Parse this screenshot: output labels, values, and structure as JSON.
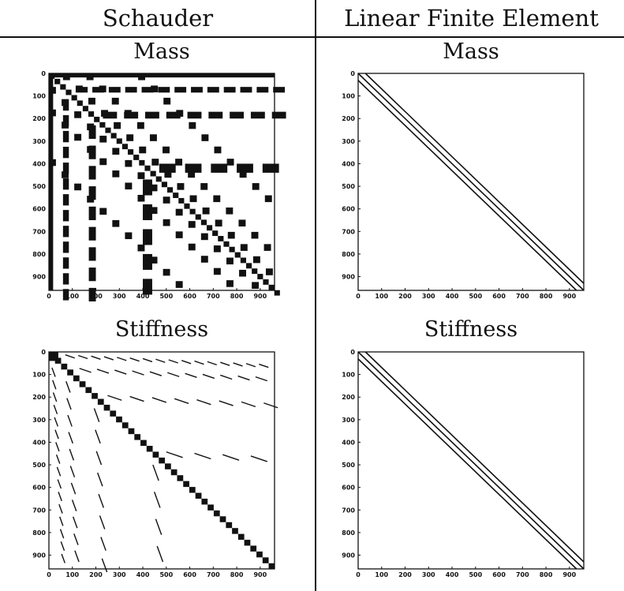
{
  "headers": {
    "left": "Schauder",
    "right": "Linear Finite Element"
  },
  "panel_titles": {
    "schauder_mass": "Mass",
    "fem_mass": "Mass",
    "schauder_stiffness": "Stiffness",
    "fem_stiffness": "Stiffness"
  },
  "axis": {
    "x_ticks": [
      "0",
      "100",
      "200",
      "300",
      "400",
      "500",
      "600",
      "700",
      "800",
      "900"
    ],
    "y_ticks": [
      "0",
      "100",
      "200",
      "300",
      "400",
      "500",
      "600",
      "700",
      "800",
      "900"
    ],
    "range": [
      0,
      961
    ]
  },
  "chart_data": [
    {
      "type": "scatter",
      "description": "sparsity pattern",
      "title": "Mass",
      "matrix_size": 961,
      "basis": "Schauder",
      "pattern": "dense hierarchical blocks with diagonal block bands"
    },
    {
      "type": "scatter",
      "description": "sparsity pattern",
      "title": "Mass",
      "matrix_size": 961,
      "basis": "Linear Finite Element",
      "pattern": "banded: main diagonal plus two off-diagonal bands at offset ~31"
    },
    {
      "type": "scatter",
      "description": "sparsity pattern",
      "title": "Stiffness",
      "matrix_size": 961,
      "basis": "Schauder",
      "pattern": "hierarchical line segments with dense diagonal blocks"
    },
    {
      "type": "scatter",
      "description": "sparsity pattern",
      "title": "Stiffness",
      "matrix_size": 961,
      "basis": "Linear Finite Element",
      "pattern": "banded: main diagonal plus two off-diagonal bands at offset ~31"
    }
  ],
  "colors": {
    "ink": "#111111",
    "background": "#ffffff"
  }
}
